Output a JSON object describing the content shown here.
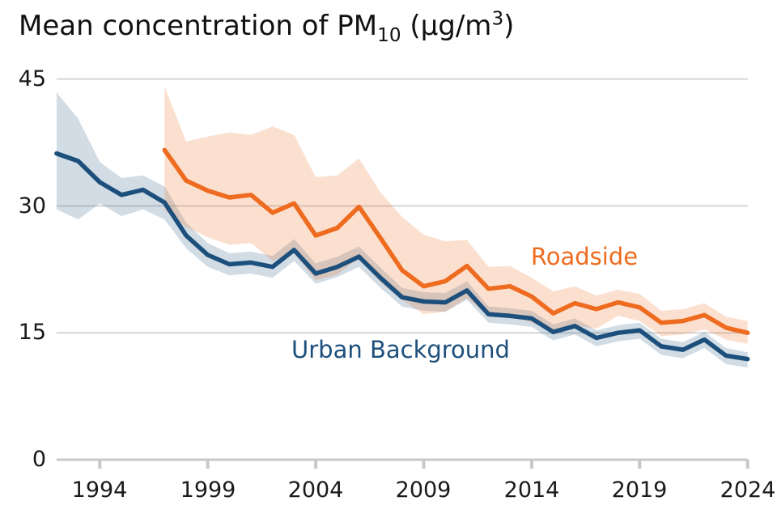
{
  "title": {
    "prefix": "Mean concentration of PM",
    "subscript": "10",
    "middle": " (µg/m",
    "superscript": "3",
    "suffix": ")"
  },
  "chart_data": {
    "type": "line",
    "title": "Mean concentration of PM10 (µg/m3)",
    "xlabel": "",
    "ylabel": "",
    "xlim": [
      1992,
      2024
    ],
    "ylim": [
      0,
      45
    ],
    "x_ticks": [
      1994,
      1999,
      2004,
      2009,
      2014,
      2019,
      2024
    ],
    "y_ticks": [
      0,
      15,
      30,
      45
    ],
    "grid": "horizontal-gridlines-at-15-30-45",
    "legend_position": "inline-annotations",
    "colors": {
      "gridline": "#d6d6d6",
      "axis": "#c8c8c8",
      "tick_label": "#1a1a1a",
      "urban_background": "#1d4f7c",
      "roadside": "#ee6b1f",
      "urban_band": "rgba(31,79,124,0.20)",
      "roadside_band": "rgba(238,107,31,0.21)"
    },
    "series": [
      {
        "name": "Urban Background",
        "color": "#1d4f7c",
        "band_color": "rgba(31,79,124,0.20)",
        "years": [
          1992,
          1993,
          1994,
          1995,
          1996,
          1997,
          1998,
          1999,
          2000,
          2001,
          2002,
          2003,
          2004,
          2005,
          2006,
          2007,
          2008,
          2009,
          2010,
          2011,
          2012,
          2013,
          2014,
          2015,
          2016,
          2017,
          2018,
          2019,
          2020,
          2021,
          2022,
          2023,
          2024
        ],
        "values": [
          36.2,
          35.3,
          32.8,
          31.3,
          31.9,
          30.4,
          26.5,
          24.2,
          23.1,
          23.3,
          22.8,
          24.8,
          22.0,
          22.8,
          24.0,
          21.5,
          19.2,
          18.7,
          18.6,
          20.0,
          17.2,
          17.0,
          16.7,
          15.1,
          15.8,
          14.4,
          15.0,
          15.3,
          13.4,
          13.0,
          14.2,
          12.3,
          11.9
        ],
        "upper": [
          43.4,
          40.3,
          35.2,
          33.3,
          33.6,
          32.3,
          28.0,
          25.6,
          24.4,
          24.6,
          24.1,
          26.1,
          23.2,
          24.0,
          25.2,
          22.7,
          20.3,
          19.8,
          19.7,
          21.1,
          18.1,
          17.9,
          17.6,
          16.0,
          16.7,
          15.3,
          15.9,
          16.2,
          14.3,
          13.9,
          15.1,
          13.2,
          12.7
        ],
        "lower": [
          29.6,
          28.4,
          30.3,
          28.8,
          29.6,
          28.4,
          25.0,
          22.8,
          21.8,
          22.0,
          21.5,
          23.5,
          20.8,
          21.6,
          22.8,
          20.3,
          18.1,
          17.6,
          17.5,
          18.9,
          16.2,
          16.0,
          15.7,
          14.1,
          14.8,
          13.4,
          14.0,
          14.3,
          12.4,
          12.0,
          13.2,
          11.3,
          10.9
        ]
      },
      {
        "name": "Roadside",
        "color": "#ee6b1f",
        "band_color": "rgba(238,107,31,0.21)",
        "years": [
          1997,
          1998,
          1999,
          2000,
          2001,
          2002,
          2003,
          2004,
          2005,
          2006,
          2007,
          2008,
          2009,
          2010,
          2011,
          2012,
          2013,
          2014,
          2015,
          2016,
          2017,
          2018,
          2019,
          2020,
          2021,
          2022,
          2023,
          2024
        ],
        "values": [
          36.6,
          33.0,
          31.8,
          31.0,
          31.3,
          29.2,
          30.3,
          26.5,
          27.4,
          29.9,
          26.2,
          22.4,
          20.5,
          21.1,
          22.9,
          20.2,
          20.5,
          19.3,
          17.3,
          18.5,
          17.8,
          18.6,
          18.0,
          16.2,
          16.4,
          17.1,
          15.6,
          15.0
        ],
        "upper": [
          44.1,
          37.6,
          38.2,
          38.7,
          38.4,
          39.4,
          38.4,
          33.4,
          33.6,
          35.6,
          31.6,
          28.7,
          26.6,
          25.8,
          26.0,
          22.8,
          22.9,
          21.5,
          19.9,
          20.5,
          19.4,
          20.1,
          19.6,
          17.6,
          17.8,
          18.5,
          16.9,
          16.4
        ],
        "lower": [
          29.5,
          27.5,
          26.3,
          25.4,
          25.6,
          23.5,
          24.4,
          21.2,
          21.9,
          23.9,
          21.0,
          18.9,
          17.2,
          17.5,
          19.1,
          17.0,
          17.0,
          16.2,
          15.3,
          15.9,
          15.5,
          17.0,
          16.4,
          14.6,
          14.8,
          15.4,
          14.2,
          13.7
        ]
      }
    ]
  }
}
